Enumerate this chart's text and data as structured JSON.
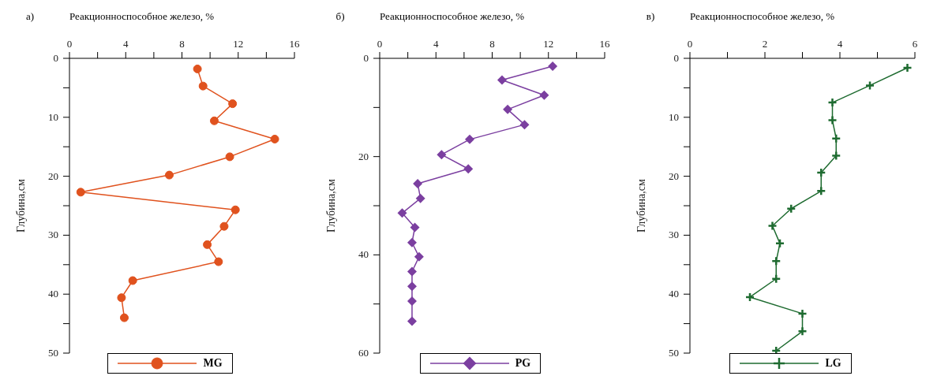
{
  "chart_data": [
    {
      "type": "line",
      "title": "а)",
      "xlabel": "Реакционноспособное железо, %",
      "ylabel": "Глубина,см",
      "xlim": [
        0,
        16
      ],
      "xticks": [
        0,
        {
          "value": 2,
          "label": null
        },
        4,
        {
          "value": 6,
          "label": null
        },
        8,
        {
          "value": 10,
          "label": null
        },
        12,
        {
          "value": 14,
          "label": null
        },
        16
      ],
      "ylim": [
        50,
        0
      ],
      "yticks": [
        0,
        {
          "value": 5,
          "label": null
        },
        10,
        {
          "value": 15,
          "label": null
        },
        20,
        {
          "value": 25,
          "label": null
        },
        30,
        {
          "value": 35,
          "label": null
        },
        40,
        {
          "value": 45,
          "label": null
        },
        50
      ],
      "marker": "circle",
      "line_style": "solid",
      "legend": "bottom",
      "grid": false,
      "series": [
        {
          "name": "MG",
          "color": "#e0521e",
          "x": [
            9.1,
            9.5,
            11.6,
            10.3,
            14.6,
            11.4,
            7.1,
            0.8,
            11.8,
            11.0,
            9.8,
            10.6,
            4.5,
            3.7,
            3.9
          ],
          "values": [
            1.8,
            4.7,
            7.7,
            10.6,
            13.7,
            16.7,
            19.8,
            22.7,
            25.7,
            28.5,
            31.6,
            34.5,
            37.7,
            40.6,
            44.0
          ]
        }
      ]
    },
    {
      "type": "line",
      "title": "б)",
      "xlabel": "Реакционноспособное железо, %",
      "ylabel": "Глубина,см",
      "xlim": [
        0,
        16
      ],
      "xticks": [
        0,
        {
          "value": 2,
          "label": null
        },
        4,
        {
          "value": 6,
          "label": null
        },
        8,
        {
          "value": 10,
          "label": null
        },
        12,
        {
          "value": 14,
          "label": null
        },
        16
      ],
      "ylim": [
        60,
        0
      ],
      "yticks": [
        0,
        {
          "value": 10,
          "label": null
        },
        20,
        {
          "value": 30,
          "label": null
        },
        40,
        {
          "value": 50,
          "label": null
        },
        60
      ],
      "marker": "diamond",
      "line_style": "solid",
      "legend": "bottom",
      "grid": false,
      "series": [
        {
          "name": "PG",
          "color": "#7b3fa0",
          "x": [
            12.3,
            8.7,
            11.7,
            9.1,
            10.3,
            6.4,
            4.4,
            6.3,
            2.7,
            2.9,
            1.6,
            2.5,
            2.3,
            2.8,
            2.3,
            2.3,
            2.3,
            2.3
          ],
          "values": [
            1.6,
            4.4,
            7.5,
            10.4,
            13.5,
            16.5,
            19.6,
            22.5,
            25.5,
            28.5,
            31.5,
            34.4,
            37.5,
            40.4,
            43.4,
            46.4,
            49.4,
            53.5
          ]
        }
      ]
    },
    {
      "type": "line",
      "title": "в)",
      "xlabel": "Реакционноспособное железо, %",
      "ylabel": "Глубина,см",
      "xlim": [
        0,
        6
      ],
      "xticks": [
        0,
        {
          "value": 1,
          "label": null
        },
        2,
        {
          "value": 3,
          "label": null
        },
        4,
        {
          "value": 5,
          "label": null
        },
        6
      ],
      "ylim": [
        50,
        0
      ],
      "yticks": [
        0,
        {
          "value": 5,
          "label": null
        },
        10,
        {
          "value": 15,
          "label": null
        },
        20,
        {
          "value": 25,
          "label": null
        },
        30,
        {
          "value": 35,
          "label": null
        },
        40,
        {
          "value": 45,
          "label": null
        },
        50
      ],
      "marker": "cross",
      "line_style": "solid",
      "legend": "bottom",
      "grid": false,
      "series": [
        {
          "name": "LG",
          "color": "#1e6b30",
          "x": [
            5.8,
            4.8,
            3.8,
            3.8,
            3.9,
            3.9,
            3.5,
            3.5,
            2.7,
            2.2,
            2.4,
            2.3,
            2.3,
            1.6,
            3.0,
            3.0,
            2.3
          ],
          "values": [
            1.6,
            4.6,
            7.5,
            10.5,
            13.6,
            16.5,
            19.4,
            22.5,
            25.5,
            28.4,
            31.4,
            34.4,
            37.4,
            40.5,
            43.3,
            46.3,
            49.6
          ]
        }
      ]
    }
  ]
}
